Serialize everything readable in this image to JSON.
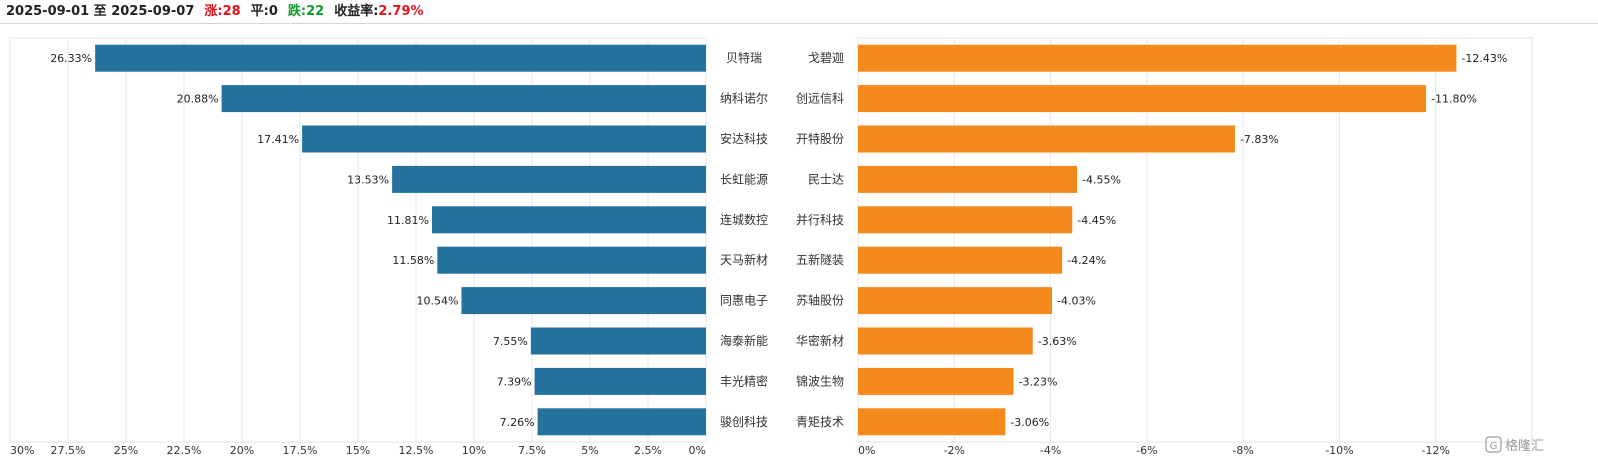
{
  "header": {
    "range": "2025-09-01 至 2025-09-07",
    "up_label": "涨:",
    "up_count": "28",
    "flat_label": "平:",
    "flat_count": "0",
    "down_label": "跌:",
    "down_count": "22",
    "yield_label": "收益率:",
    "yield_value": "2.79%"
  },
  "colors": {
    "gainers_bar": "#25739c",
    "losers_bar": "#f38a1b",
    "up_text": "#e0141b",
    "down_text": "#129a2c"
  },
  "watermark": "格隆汇",
  "chart_data": [
    {
      "type": "bar",
      "orientation": "horizontal",
      "direction": "right-to-left",
      "categories": [
        "贝特瑞",
        "纳科诺尔",
        "安达科技",
        "长虹能源",
        "连城数控",
        "天马新材",
        "同惠电子",
        "海泰新能",
        "丰光精密",
        "骏创科技"
      ],
      "values": [
        26.33,
        20.88,
        17.41,
        13.53,
        11.81,
        11.58,
        10.54,
        7.55,
        7.39,
        7.26
      ],
      "value_labels": [
        "26.33%",
        "20.88%",
        "17.41%",
        "13.53%",
        "11.81%",
        "11.58%",
        "10.54%",
        "7.55%",
        "7.39%",
        "7.26%"
      ],
      "xlim": [
        0,
        30
      ],
      "ticks": [
        30,
        27.5,
        25,
        22.5,
        20,
        17.5,
        15,
        12.5,
        10,
        7.5,
        5,
        2.5,
        0
      ],
      "tick_labels": [
        "30%",
        "27.5%",
        "25%",
        "22.5%",
        "20%",
        "17.5%",
        "15%",
        "12.5%",
        "10%",
        "7.5%",
        "5%",
        "2.5%",
        "0%"
      ],
      "grid": true
    },
    {
      "type": "bar",
      "orientation": "horizontal",
      "direction": "left-to-right",
      "categories": [
        "戈碧迦",
        "创远信科",
        "开特股份",
        "民士达",
        "并行科技",
        "五新隧装",
        "苏轴股份",
        "华密新材",
        "锦波生物",
        "青矩技术"
      ],
      "values": [
        -12.43,
        -11.8,
        -7.83,
        -4.55,
        -4.45,
        -4.24,
        -4.03,
        -3.63,
        -3.23,
        -3.06
      ],
      "value_labels": [
        "-12.43%",
        "-11.80%",
        "-7.83%",
        "-4.55%",
        "-4.45%",
        "-4.24%",
        "-4.03%",
        "-3.63%",
        "-3.23%",
        "-3.06%"
      ],
      "xlim": [
        0,
        -14
      ],
      "ticks": [
        0,
        -2,
        -4,
        -6,
        -8,
        -10,
        -12
      ],
      "tick_labels": [
        "0%",
        "-2%",
        "-4%",
        "-6%",
        "-8%",
        "-10%",
        "-12%"
      ],
      "grid": true
    }
  ]
}
